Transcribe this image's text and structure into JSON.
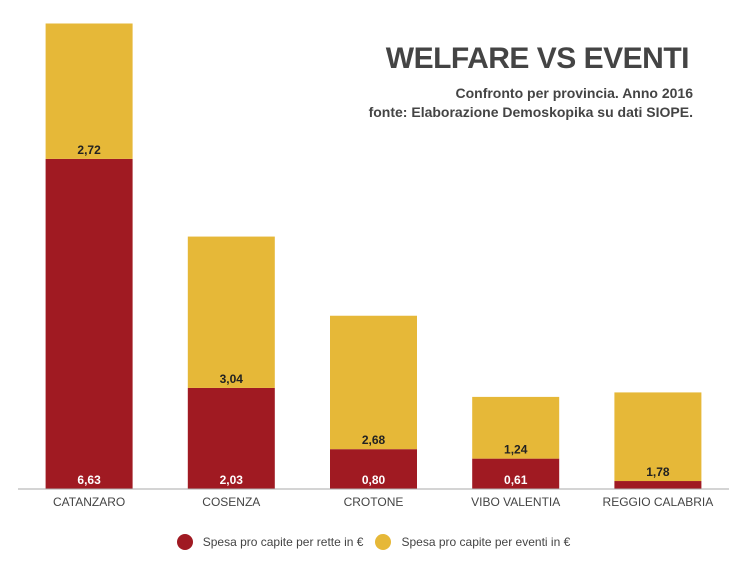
{
  "chart_data": {
    "type": "bar",
    "stacked": true,
    "title": "WELFARE VS EVENTI",
    "subtitle": [
      "Confronto per provincia. Anno 2016",
      "fonte: Elaborazione Demoskopika su dati SIOPE."
    ],
    "xlabel": "",
    "ylabel": "",
    "ylim": [
      0,
      9.4
    ],
    "grid": false,
    "legend_position": "bottom",
    "categories": [
      "CATANZARO",
      "COSENZA",
      "CROTONE",
      "VIBO VALENTIA",
      "REGGIO CALABRIA"
    ],
    "series": [
      {
        "name": "Spesa pro capite per rette in €",
        "color": "#a01a22",
        "values": [
          6.63,
          2.03,
          0.8,
          0.61,
          0.16
        ],
        "labels": [
          "6,63",
          "2,03",
          "0,80",
          "0,61",
          ""
        ],
        "label_color": "#ffffff"
      },
      {
        "name": "Spesa pro capite per eventi in €",
        "color": "#e6b838",
        "values": [
          2.72,
          3.04,
          2.68,
          1.24,
          1.78
        ],
        "labels": [
          "2,72",
          "3,04",
          "2,68",
          "1,24",
          "1,78"
        ],
        "label_color": "#222222"
      }
    ]
  },
  "colors": {
    "axis": "#aaaaaa",
    "text": "#444444"
  }
}
